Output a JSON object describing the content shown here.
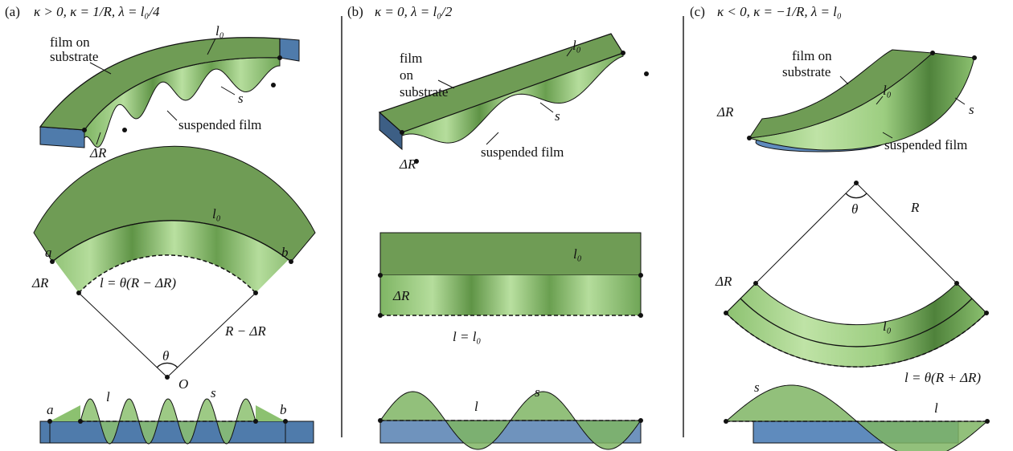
{
  "panels": [
    {
      "label": "(a)",
      "condition": "κ > 0, κ = 1/R, λ = l₀/4",
      "top": {
        "film_on_substrate": [
          "film on",
          "substrate"
        ],
        "l0": "l₀",
        "s": "s",
        "suspended_film": "suspended film",
        "delta_r": "ΔR"
      },
      "middle": {
        "l0": "l₀",
        "a": "a",
        "b": "b",
        "delta_r": "ΔR",
        "arc_length": "l = θ(R − ΔR)",
        "radius": "R − ΔR",
        "angle": "θ",
        "origin": "O"
      },
      "bottom": {
        "a": "a",
        "l": "l",
        "s": "s",
        "b": "b"
      }
    },
    {
      "label": "(b)",
      "condition": "κ = 0, λ = l₀/2",
      "top": {
        "film_on_substrate": [
          "film",
          "on",
          "substrate"
        ],
        "l0": "l₀",
        "s": "s",
        "delta_r": "ΔR",
        "suspended_film": "suspended film"
      },
      "middle": {
        "l0": "l₀",
        "delta_r": "ΔR",
        "arc_length": "l = l₀"
      },
      "bottom": {
        "s": "s",
        "l": "l"
      }
    },
    {
      "label": "(c)",
      "condition": "κ < 0, κ = −1/R, λ = l₀",
      "top": {
        "film_on_substrate": [
          "film on",
          "substrate"
        ],
        "l0": "l₀",
        "delta_r": "ΔR",
        "s": "s",
        "suspended_film": "suspended film"
      },
      "middle": {
        "angle": "θ",
        "radius": "R",
        "delta_r": "ΔR",
        "l0": "l₀",
        "arc_length": "l = θ(R + ΔR)"
      },
      "bottom": {
        "s": "s",
        "l": "l"
      }
    }
  ]
}
